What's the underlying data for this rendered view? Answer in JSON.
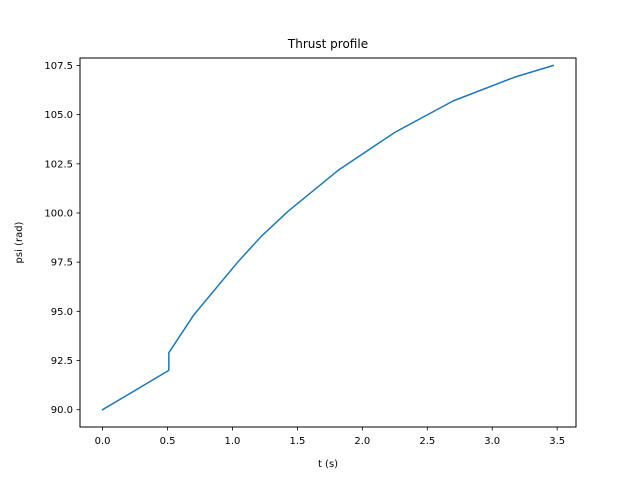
{
  "chart_data": {
    "type": "line",
    "title": "Thrust profile",
    "xlabel": "t (s)",
    "ylabel": "psi (rad)",
    "xlim": [
      -0.174,
      3.645
    ],
    "ylim": [
      89.12,
      107.88
    ],
    "xticks": [
      0.0,
      0.5,
      1.0,
      1.5,
      2.0,
      2.5,
      3.0,
      3.5
    ],
    "xtick_labels": [
      "0.0",
      "0.5",
      "1.0",
      "1.5",
      "2.0",
      "2.5",
      "3.0",
      "3.5"
    ],
    "yticks": [
      90.0,
      92.5,
      95.0,
      97.5,
      100.0,
      102.5,
      105.0,
      107.5
    ],
    "ytick_labels": [
      "90.0",
      "92.5",
      "95.0",
      "97.5",
      "100.0",
      "102.5",
      "105.0",
      "107.5"
    ],
    "grid": false,
    "series": [
      {
        "color": "#1f77b4",
        "x": [
          0.0,
          0.51,
          0.51,
          0.7,
          1.04,
          1.22,
          1.43,
          1.82,
          2.25,
          2.7,
          3.17,
          3.47
        ],
        "y": [
          90.0,
          92.0,
          92.9,
          94.8,
          97.5,
          98.8,
          100.1,
          102.2,
          104.1,
          105.7,
          106.9,
          107.5
        ]
      }
    ]
  }
}
